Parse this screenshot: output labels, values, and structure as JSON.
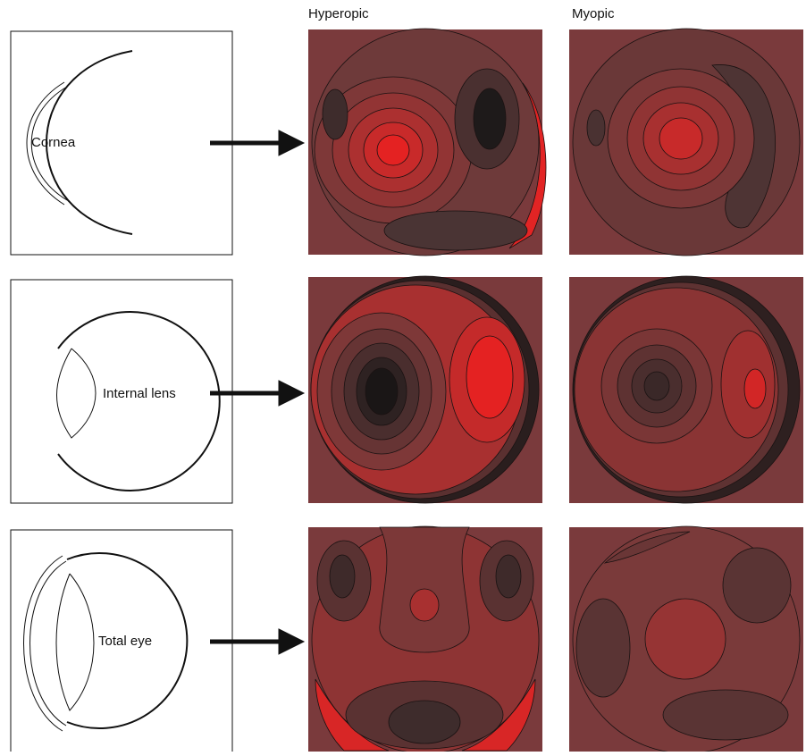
{
  "column_headers": [
    "Hyperopic",
    "Myopic"
  ],
  "rows": [
    {
      "label": "Cornea"
    },
    {
      "label": "Internal lens"
    },
    {
      "label": "Total eye"
    }
  ]
}
